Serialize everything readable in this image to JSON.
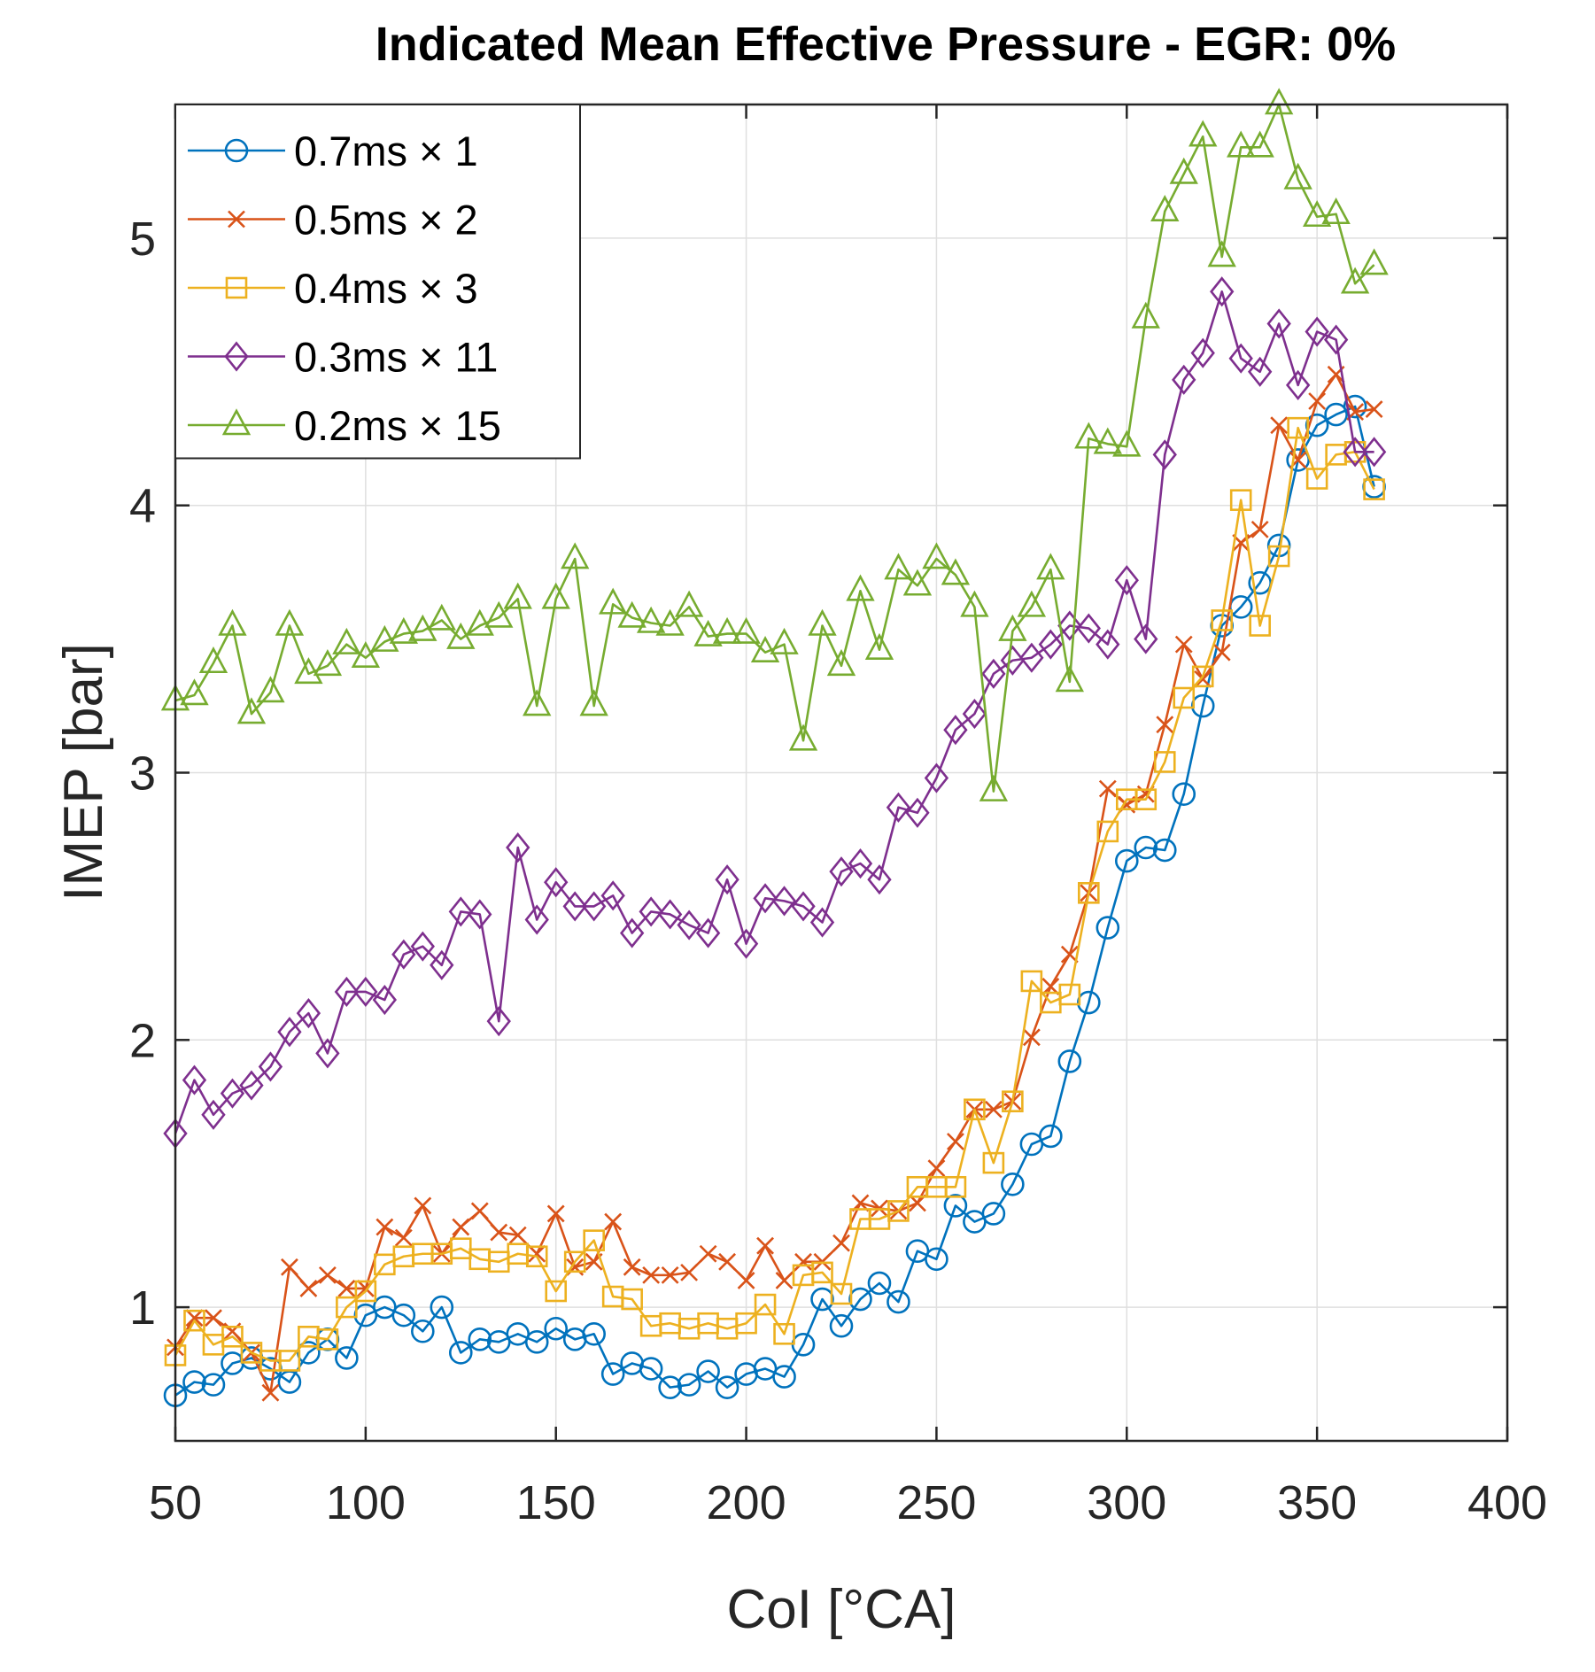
{
  "chart_data": {
    "type": "line",
    "title": "Indicated Mean Effective Pressure - EGR: 0%",
    "xlabel": "CoI [°CA]",
    "ylabel": "IMEP [bar]",
    "xlim": [
      50,
      400
    ],
    "ylim": [
      0.5,
      5.5
    ],
    "xticks": [
      50,
      100,
      150,
      200,
      250,
      300,
      350,
      400
    ],
    "yticks": [
      1,
      2,
      3,
      4,
      5
    ],
    "grid": true,
    "legend_location": "top-left",
    "x": [
      50,
      55,
      60,
      65,
      70,
      75,
      80,
      85,
      90,
      95,
      100,
      105,
      110,
      115,
      120,
      125,
      130,
      135,
      140,
      145,
      150,
      155,
      160,
      165,
      170,
      175,
      180,
      185,
      190,
      195,
      200,
      205,
      210,
      215,
      220,
      225,
      230,
      235,
      240,
      245,
      250,
      255,
      260,
      265,
      270,
      275,
      280,
      285,
      290,
      295,
      300,
      305,
      310,
      315,
      320,
      325,
      330,
      335,
      340,
      345,
      350,
      355,
      360,
      365
    ],
    "series": [
      {
        "name": "0.7ms × 1",
        "color": "#0072BD",
        "marker": "circle",
        "values": [
          0.67,
          0.72,
          0.71,
          0.79,
          0.81,
          0.77,
          0.72,
          0.83,
          0.88,
          0.81,
          0.97,
          1.0,
          0.97,
          0.91,
          1.0,
          0.83,
          0.88,
          0.87,
          0.9,
          0.87,
          0.92,
          0.88,
          0.9,
          0.75,
          0.79,
          0.77,
          0.7,
          0.71,
          0.76,
          0.7,
          0.75,
          0.77,
          0.74,
          0.86,
          1.03,
          0.93,
          1.03,
          1.09,
          1.02,
          1.21,
          1.18,
          1.38,
          1.32,
          1.35,
          1.46,
          1.61,
          1.64,
          1.92,
          2.14,
          2.42,
          2.67,
          2.72,
          2.71,
          2.92,
          3.25,
          3.55,
          3.62,
          3.71,
          3.85,
          4.17,
          4.3,
          4.34,
          4.37,
          4.07
        ]
      },
      {
        "name": "0.5ms × 2",
        "color": "#D95319",
        "marker": "x",
        "values": [
          0.85,
          0.96,
          0.96,
          0.91,
          0.83,
          0.68,
          1.15,
          1.07,
          1.12,
          1.07,
          1.07,
          1.3,
          1.26,
          1.38,
          1.2,
          1.3,
          1.36,
          1.28,
          1.27,
          1.2,
          1.35,
          1.15,
          1.17,
          1.32,
          1.15,
          1.12,
          1.12,
          1.13,
          1.2,
          1.17,
          1.1,
          1.23,
          1.1,
          1.17,
          1.17,
          1.24,
          1.39,
          1.37,
          1.36,
          1.39,
          1.52,
          1.62,
          1.74,
          1.74,
          1.77,
          2.01,
          2.2,
          2.32,
          2.55,
          2.94,
          2.88,
          2.92,
          3.18,
          3.48,
          3.35,
          3.45,
          3.86,
          3.91,
          4.3,
          4.17,
          4.39,
          4.49,
          4.35,
          4.36
        ]
      },
      {
        "name": "0.4ms × 3",
        "color": "#EDB120",
        "marker": "square",
        "values": [
          0.82,
          0.95,
          0.86,
          0.89,
          0.83,
          0.8,
          0.8,
          0.89,
          0.88,
          1.0,
          1.06,
          1.16,
          1.19,
          1.2,
          1.2,
          1.22,
          1.18,
          1.17,
          1.2,
          1.19,
          1.06,
          1.17,
          1.25,
          1.04,
          1.03,
          0.93,
          0.94,
          0.92,
          0.94,
          0.92,
          0.94,
          1.01,
          0.9,
          1.12,
          1.13,
          1.05,
          1.33,
          1.33,
          1.36,
          1.45,
          1.45,
          1.45,
          1.74,
          1.54,
          1.77,
          2.22,
          2.14,
          2.17,
          2.55,
          2.78,
          2.9,
          2.9,
          3.04,
          3.28,
          3.36,
          3.57,
          4.02,
          3.55,
          3.81,
          4.29,
          4.1,
          4.19,
          4.2,
          4.06
        ]
      },
      {
        "name": "0.3ms × 11",
        "color": "#7E2F8E",
        "marker": "diamond",
        "values": [
          1.65,
          1.85,
          1.72,
          1.8,
          1.83,
          1.9,
          2.03,
          2.1,
          1.95,
          2.18,
          2.18,
          2.15,
          2.32,
          2.35,
          2.28,
          2.48,
          2.47,
          2.07,
          2.72,
          2.45,
          2.59,
          2.5,
          2.5,
          2.54,
          2.4,
          2.48,
          2.47,
          2.43,
          2.4,
          2.6,
          2.36,
          2.53,
          2.52,
          2.5,
          2.44,
          2.63,
          2.66,
          2.6,
          2.87,
          2.85,
          2.98,
          3.16,
          3.22,
          3.37,
          3.42,
          3.43,
          3.48,
          3.55,
          3.54,
          3.48,
          3.72,
          3.5,
          4.19,
          4.47,
          4.57,
          4.8,
          4.55,
          4.5,
          4.68,
          4.45,
          4.65,
          4.62,
          4.2,
          4.2
        ]
      },
      {
        "name": "0.2ms × 15",
        "color": "#77AC30",
        "marker": "triangle",
        "values": [
          3.27,
          3.29,
          3.41,
          3.55,
          3.22,
          3.3,
          3.55,
          3.37,
          3.4,
          3.48,
          3.43,
          3.49,
          3.52,
          3.53,
          3.57,
          3.5,
          3.55,
          3.58,
          3.65,
          3.25,
          3.65,
          3.8,
          3.25,
          3.63,
          3.58,
          3.56,
          3.55,
          3.62,
          3.51,
          3.52,
          3.52,
          3.45,
          3.48,
          3.12,
          3.55,
          3.4,
          3.68,
          3.46,
          3.76,
          3.7,
          3.8,
          3.74,
          3.62,
          2.93,
          3.53,
          3.62,
          3.76,
          3.34,
          4.25,
          4.23,
          4.22,
          4.7,
          5.1,
          5.24,
          5.38,
          4.93,
          5.34,
          5.34,
          5.5,
          5.22,
          5.08,
          5.09,
          4.83,
          4.9
        ]
      }
    ]
  }
}
